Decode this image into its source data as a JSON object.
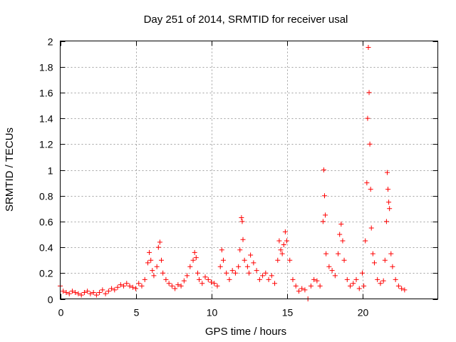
{
  "chart_data": {
    "type": "scatter",
    "title": "Day 251 of 2014, SRMTID for receiver usal",
    "xlabel": "GPS time / hours",
    "ylabel": "SRMTID / TECUs",
    "xlim": [
      0,
      25
    ],
    "ylim": [
      0,
      2
    ],
    "xticks": [
      0,
      5,
      10,
      15,
      20
    ],
    "yticks": [
      0,
      0.2,
      0.4,
      0.6,
      0.8,
      1,
      1.2,
      1.4,
      1.6,
      1.8,
      2
    ],
    "xtick_labels": [
      "0",
      "5",
      "10",
      "15",
      "20"
    ],
    "ytick_labels": [
      "0",
      "0.2",
      "0.4",
      "0.6",
      "0.8",
      "1",
      "1.2",
      "1.4",
      "1.6",
      "1.8",
      "2"
    ],
    "grid": true,
    "marker": "+",
    "color": "#ff0000",
    "series": [
      {
        "name": "SRMTID",
        "x": [
          0.0,
          0.2,
          0.4,
          0.6,
          0.8,
          1.0,
          1.2,
          1.4,
          1.6,
          1.8,
          2.0,
          2.2,
          2.4,
          2.6,
          2.8,
          3.0,
          3.2,
          3.4,
          3.6,
          3.8,
          4.0,
          4.2,
          4.4,
          4.6,
          4.8,
          5.0,
          5.2,
          5.4,
          5.6,
          5.8,
          5.9,
          6.0,
          6.1,
          6.2,
          6.4,
          6.5,
          6.6,
          6.7,
          6.8,
          7.0,
          7.2,
          7.4,
          7.6,
          7.8,
          8.0,
          8.2,
          8.4,
          8.6,
          8.8,
          8.9,
          9.0,
          9.1,
          9.2,
          9.4,
          9.6,
          9.8,
          10.0,
          10.2,
          10.4,
          10.6,
          10.7,
          10.8,
          11.0,
          11.2,
          11.4,
          11.6,
          11.8,
          11.9,
          12.0,
          12.05,
          12.1,
          12.2,
          12.4,
          12.5,
          12.6,
          12.8,
          13.0,
          13.2,
          13.4,
          13.6,
          13.8,
          14.0,
          14.2,
          14.4,
          14.5,
          14.6,
          14.7,
          14.8,
          14.9,
          15.0,
          15.2,
          15.4,
          15.6,
          15.8,
          16.0,
          16.2,
          16.4,
          16.6,
          16.8,
          17.0,
          17.2,
          17.4,
          17.45,
          17.5,
          17.55,
          17.6,
          17.8,
          18.0,
          18.2,
          18.4,
          18.5,
          18.6,
          18.7,
          18.8,
          19.0,
          19.2,
          19.4,
          19.6,
          19.8,
          20.0,
          20.1,
          20.2,
          20.3,
          20.35,
          20.4,
          20.45,
          20.5,
          20.55,
          20.6,
          20.7,
          20.8,
          21.0,
          21.2,
          21.4,
          21.5,
          21.6,
          21.65,
          21.7,
          21.75,
          21.8,
          21.9,
          22.0,
          22.2,
          22.4,
          22.6,
          22.8
        ],
        "y": [
          0.1,
          0.06,
          0.05,
          0.04,
          0.06,
          0.05,
          0.04,
          0.03,
          0.05,
          0.06,
          0.04,
          0.05,
          0.03,
          0.05,
          0.07,
          0.04,
          0.06,
          0.08,
          0.07,
          0.09,
          0.11,
          0.1,
          0.12,
          0.1,
          0.09,
          0.08,
          0.12,
          0.1,
          0.15,
          0.28,
          0.36,
          0.3,
          0.22,
          0.18,
          0.25,
          0.4,
          0.44,
          0.3,
          0.2,
          0.15,
          0.12,
          0.1,
          0.08,
          0.11,
          0.1,
          0.14,
          0.18,
          0.25,
          0.3,
          0.36,
          0.32,
          0.2,
          0.15,
          0.12,
          0.17,
          0.15,
          0.13,
          0.12,
          0.1,
          0.25,
          0.38,
          0.3,
          0.2,
          0.15,
          0.22,
          0.2,
          0.25,
          0.38,
          0.63,
          0.6,
          0.46,
          0.3,
          0.25,
          0.2,
          0.34,
          0.28,
          0.22,
          0.15,
          0.18,
          0.2,
          0.15,
          0.18,
          0.12,
          0.3,
          0.45,
          0.38,
          0.35,
          0.42,
          0.52,
          0.45,
          0.3,
          0.15,
          0.1,
          0.06,
          0.08,
          0.07,
          0.0,
          0.1,
          0.15,
          0.14,
          0.1,
          0.6,
          1.0,
          0.8,
          0.65,
          0.35,
          0.25,
          0.22,
          0.18,
          0.35,
          0.5,
          0.58,
          0.45,
          0.3,
          0.15,
          0.1,
          0.12,
          0.15,
          0.08,
          0.2,
          0.1,
          0.45,
          0.9,
          1.4,
          1.95,
          1.6,
          1.2,
          0.85,
          0.55,
          0.35,
          0.28,
          0.15,
          0.12,
          0.14,
          0.3,
          0.6,
          0.98,
          0.85,
          0.75,
          0.7,
          0.35,
          0.25,
          0.15,
          0.1,
          0.08,
          0.07
        ]
      }
    ]
  }
}
